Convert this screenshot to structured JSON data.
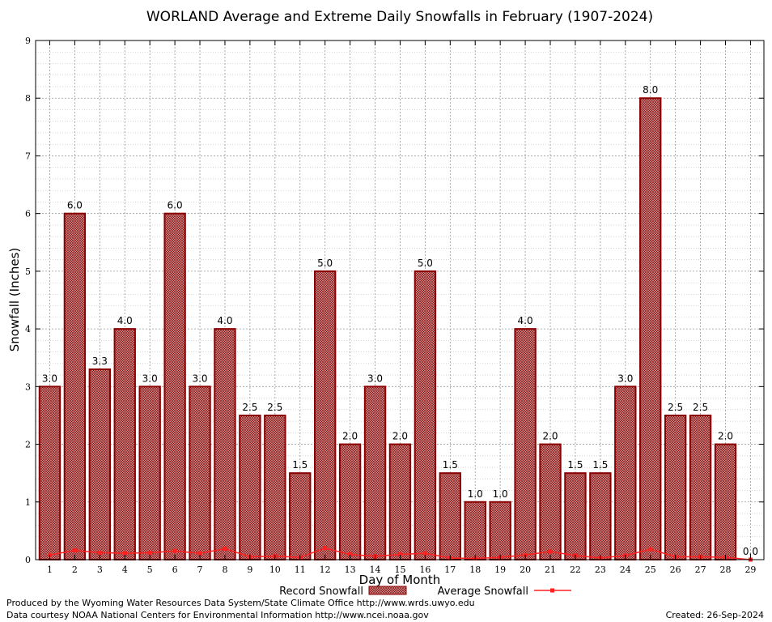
{
  "chart_data": {
    "type": "bar",
    "title": "WORLAND Average and Extreme Daily Snowfalls in February (1907-2024)",
    "xlabel": "Day of Month",
    "ylabel": "Snowfall (Inches)",
    "ylim": [
      0,
      9
    ],
    "yticks": [
      "0",
      "1",
      "2",
      "3",
      "4",
      "5",
      "6",
      "7",
      "8",
      "9"
    ],
    "categories": [
      "1",
      "2",
      "3",
      "4",
      "5",
      "6",
      "7",
      "8",
      "9",
      "10",
      "11",
      "12",
      "13",
      "14",
      "15",
      "16",
      "17",
      "18",
      "19",
      "20",
      "21",
      "22",
      "23",
      "24",
      "25",
      "26",
      "27",
      "28",
      "29"
    ],
    "series": [
      {
        "name": "Record Snowfall",
        "kind": "bar",
        "values": [
          3.0,
          6.0,
          3.3,
          4.0,
          3.0,
          6.0,
          3.0,
          4.0,
          2.5,
          2.5,
          1.5,
          5.0,
          2.0,
          3.0,
          2.0,
          5.0,
          1.5,
          1.0,
          1.0,
          4.0,
          2.0,
          1.5,
          1.5,
          3.0,
          8.0,
          2.5,
          2.5,
          2.0,
          0.0
        ],
        "labels": [
          "3.0",
          "6.0",
          "3.3",
          "4.0",
          "3.0",
          "6.0",
          "3.0",
          "4.0",
          "2.5",
          "2.5",
          "1.5",
          "5.0",
          "2.0",
          "3.0",
          "2.0",
          "5.0",
          "1.5",
          "1.0",
          "1.0",
          "4.0",
          "2.0",
          "1.5",
          "1.5",
          "3.0",
          "8.0",
          "2.5",
          "2.5",
          "2.0",
          "0.0"
        ]
      },
      {
        "name": "Average Snowfall",
        "kind": "line",
        "values": [
          0.08,
          0.16,
          0.12,
          0.11,
          0.12,
          0.15,
          0.11,
          0.19,
          0.05,
          0.06,
          0.04,
          0.2,
          0.09,
          0.06,
          0.09,
          0.11,
          0.03,
          0.02,
          0.04,
          0.08,
          0.14,
          0.07,
          0.03,
          0.07,
          0.18,
          0.05,
          0.05,
          0.04,
          0.0
        ]
      }
    ],
    "grid": true,
    "legend": "bottom",
    "colors": {
      "bar_fill": "#b07070",
      "bar_stroke": "#8b0000",
      "line": "#ff2020",
      "grid": "#a0a0a0"
    }
  },
  "footer": {
    "produced_by": "Produced by the Wyoming Water Resources Data System/State Climate Office http://www.wrds.uwyo.edu",
    "courtesy": "Data courtesy NOAA National Centers for Environmental Information http://www.ncei.noaa.gov",
    "created": "Created:  26-Sep-2024"
  }
}
